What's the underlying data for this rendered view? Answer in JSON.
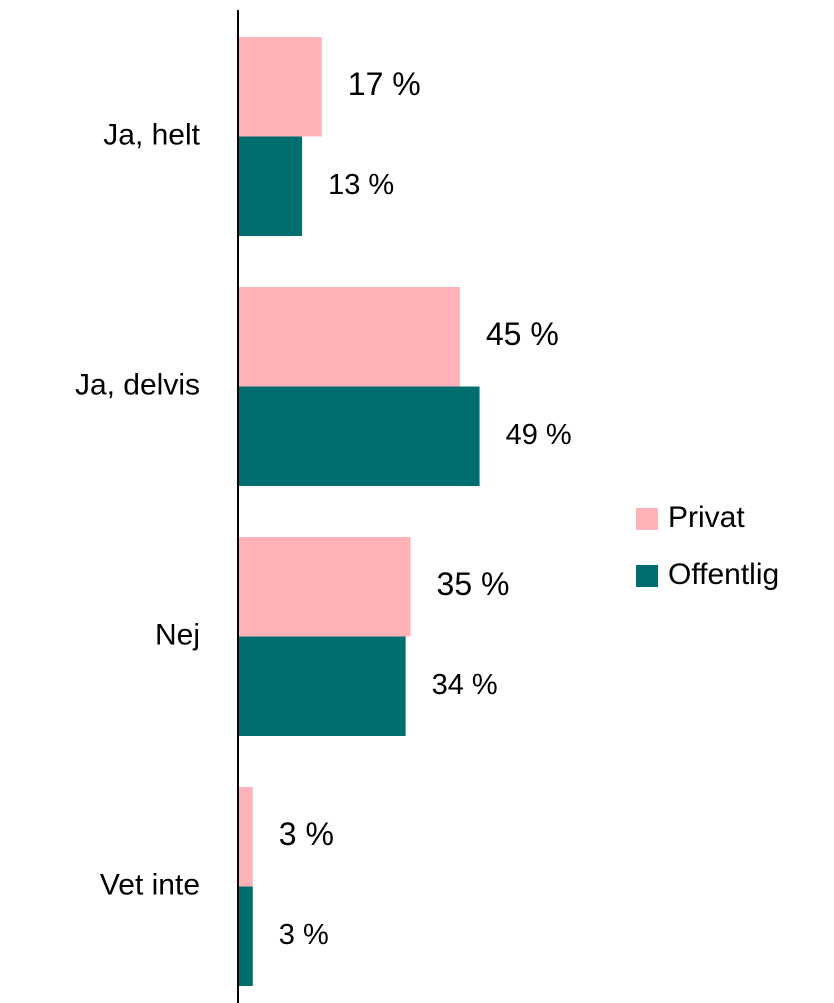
{
  "chart_data": {
    "type": "bar",
    "orientation": "horizontal",
    "categories": [
      "Ja, helt",
      "Ja, delvis",
      "Nej",
      "Vet inte"
    ],
    "series": [
      {
        "name": "Privat",
        "color": "#ffb3b8",
        "values": [
          17,
          45,
          35,
          3
        ],
        "value_labels": [
          "17 %",
          "45 %",
          "35 %",
          "3 %"
        ]
      },
      {
        "name": "Offentlig",
        "color": "#006e6e",
        "values": [
          13,
          49,
          34,
          3
        ],
        "value_labels": [
          "13 %",
          "49 %",
          "34 %",
          "3 %"
        ]
      }
    ],
    "legend": "right"
  }
}
